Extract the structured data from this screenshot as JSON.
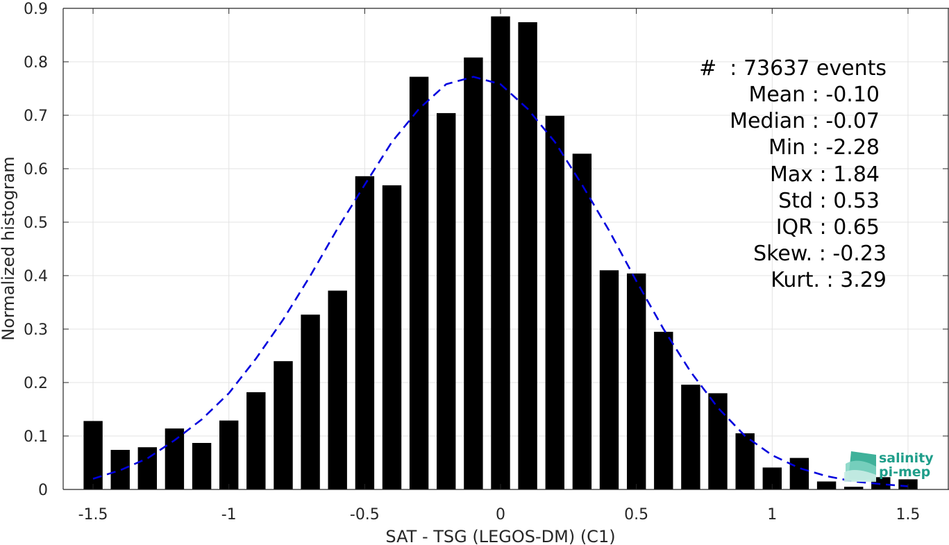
{
  "chart_data": {
    "type": "bar",
    "xlabel": "SAT - TSG (LEGOS-DM) (C1)",
    "ylabel": "Normalized histogram",
    "xlim": [
      -1.6,
      1.6
    ],
    "ylim": [
      0,
      0.9
    ],
    "x_ticks": [
      -1.5,
      -1,
      -0.5,
      0,
      0.5,
      1,
      1.5
    ],
    "x_tick_labels": [
      "-1.5",
      "-1",
      "-0.5",
      "0",
      "0.5",
      "1",
      "1.5"
    ],
    "y_ticks": [
      0,
      0.1,
      0.2,
      0.3,
      0.4,
      0.5,
      0.6,
      0.7,
      0.8,
      0.9
    ],
    "y_tick_labels": [
      "0",
      "0.1",
      "0.2",
      "0.3",
      "0.4",
      "0.5",
      "0.6",
      "0.7",
      "0.8",
      "0.9"
    ],
    "grid": true,
    "bar_width": 0.07,
    "bin_centers": [
      -1.5,
      -1.4,
      -1.3,
      -1.2,
      -1.1,
      -1.0,
      -0.9,
      -0.8,
      -0.7,
      -0.6,
      -0.5,
      -0.4,
      -0.3,
      -0.2,
      -0.1,
      0.0,
      0.1,
      0.2,
      0.3,
      0.4,
      0.5,
      0.6,
      0.7,
      0.8,
      0.9,
      1.0,
      1.1,
      1.2,
      1.3,
      1.4,
      1.5
    ],
    "values": [
      0.128,
      0.074,
      0.079,
      0.114,
      0.087,
      0.129,
      0.182,
      0.24,
      0.327,
      0.372,
      0.586,
      0.569,
      0.772,
      0.704,
      0.808,
      0.885,
      0.874,
      0.699,
      0.628,
      0.41,
      0.404,
      0.295,
      0.196,
      0.18,
      0.105,
      0.041,
      0.059,
      0.015,
      0.005,
      0.023,
      0.019
    ],
    "bar_color": "#000000",
    "fit_curve": {
      "style": "dashed",
      "color": "#0000dd",
      "x": [
        -1.5,
        -1.4,
        -1.3,
        -1.2,
        -1.1,
        -1.0,
        -0.9,
        -0.8,
        -0.7,
        -0.6,
        -0.5,
        -0.4,
        -0.3,
        -0.2,
        -0.1,
        0.0,
        0.1,
        0.2,
        0.3,
        0.4,
        0.5,
        0.6,
        0.7,
        0.8,
        0.9,
        1.0,
        1.1,
        1.2,
        1.3,
        1.4,
        1.5
      ],
      "y": [
        0.02,
        0.036,
        0.058,
        0.092,
        0.131,
        0.18,
        0.245,
        0.318,
        0.4,
        0.488,
        0.57,
        0.65,
        0.712,
        0.758,
        0.772,
        0.758,
        0.712,
        0.65,
        0.57,
        0.484,
        0.39,
        0.3,
        0.22,
        0.153,
        0.1,
        0.064,
        0.04,
        0.025,
        0.015,
        0.01,
        0.006
      ]
    },
    "stats": [
      "#  : 73637 events",
      "Mean : -0.10",
      "Median : -0.07",
      "Min : -2.28",
      "Max : 1.84",
      "Std : 0.53",
      "IQR : 0.65",
      "Skew. : -0.23",
      "Kurt. : 3.29"
    ]
  },
  "logo": {
    "line1": "salinity",
    "line2": "pi-mep",
    "color": "#1f9e8a"
  }
}
